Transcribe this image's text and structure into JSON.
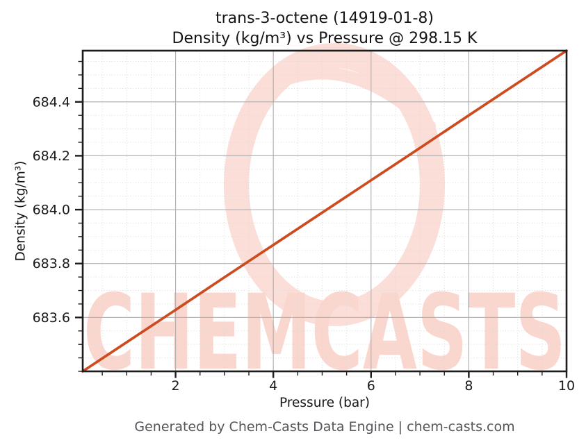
{
  "page": {
    "background": "#ffffff"
  },
  "chart_data": {
    "type": "line",
    "title": "trans-3-octene (14919-01-8)",
    "subtitle": "Density (kg/m³) vs Pressure @ 298.15 K",
    "compound": "trans-3-octene",
    "cas_number": "14919-01-8",
    "temperature": "298.15 K",
    "xlabel": "Pressure (bar)",
    "ylabel": "Density (kg/m³)",
    "xlim": [
      0.1,
      10
    ],
    "ylim": [
      683.4,
      684.59
    ],
    "x_ticks": [
      2,
      4,
      6,
      8,
      10
    ],
    "x_tick_labels": [
      "2",
      "4",
      "6",
      "8",
      "10"
    ],
    "y_ticks": [
      683.6,
      683.8,
      684.0,
      684.2,
      684.4
    ],
    "y_tick_labels": [
      "683.6",
      "683.8",
      "684.0",
      "684.2",
      "684.4"
    ],
    "x_minor_step": 0.5,
    "y_minor_step": 0.05,
    "grid": {
      "major": true,
      "minor": true
    },
    "legend": "none",
    "series": [
      {
        "name": "Density vs Pressure at 298.15 K",
        "color": "#cd4b1e",
        "x": [
          0.1,
          1,
          2,
          3,
          4,
          5,
          6,
          7,
          8,
          9,
          10
        ],
        "y": [
          683.4,
          683.508,
          683.628,
          683.749,
          683.869,
          683.989,
          684.109,
          684.229,
          684.35,
          684.47,
          684.59
        ]
      }
    ]
  },
  "watermark": {
    "text": "CHEMCASTS",
    "logo": "brush-ring",
    "text_color": "#f9d6ce",
    "logo_color": "#fbded8"
  },
  "footer": {
    "text": "Generated by Chem-Casts Data Engine | chem-casts.com"
  },
  "colors": {
    "line": "#cd4b1e",
    "grid_major": "#b2b2b2",
    "grid_minor": "#d9d9d9",
    "axis": "#1c1c1c",
    "text": "#1a1a1a",
    "footer_text": "#55565a"
  }
}
